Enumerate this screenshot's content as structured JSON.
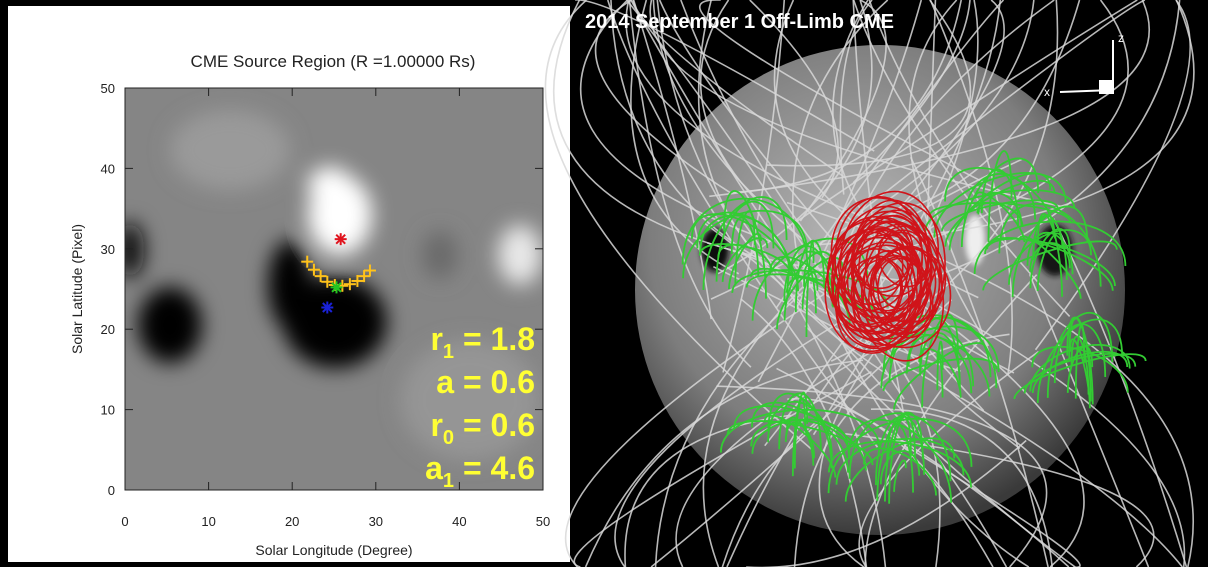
{
  "chart_data": {
    "type": "image-scatter",
    "title": "CME Source Region (R =1.00000 Rs)",
    "xlabel": "Solar Longitude (Degree)",
    "ylabel": "Solar Latitude (Pixel)",
    "xlim": [
      0,
      50
    ],
    "ylim": [
      0,
      50
    ],
    "xticks": [
      0,
      10,
      20,
      30,
      40,
      50
    ],
    "yticks": [
      0,
      10,
      20,
      30,
      40,
      50
    ],
    "series": [
      {
        "color": "#ffc21a",
        "marker": "plus",
        "x": [
          21.8,
          22.6,
          23.4,
          24.2,
          25.1,
          26.0,
          26.9,
          27.8,
          28.6,
          29.3
        ],
        "y": [
          28.4,
          27.4,
          26.6,
          25.9,
          25.5,
          25.4,
          25.6,
          26.0,
          26.6,
          27.3
        ]
      },
      {
        "color": "#e0141e",
        "marker": "asterisk",
        "x": [
          25.8
        ],
        "y": [
          31.2
        ]
      },
      {
        "color": "#22c522",
        "marker": "asterisk",
        "x": [
          25.3
        ],
        "y": [
          25.2
        ]
      },
      {
        "color": "#1a22d8",
        "marker": "asterisk",
        "x": [
          24.2
        ],
        "y": [
          22.7
        ]
      }
    ],
    "annotations": [
      {
        "base": "r",
        "sub": "1",
        "text": " = 1.8"
      },
      {
        "base": "a",
        "text": " = 0.6"
      },
      {
        "base": "r",
        "sub": "0",
        "text": " = 0.6"
      },
      {
        "base": "a",
        "sub": "1",
        "text": " = 4.6"
      }
    ]
  },
  "render_panel": {
    "title": "2014 September 1 Off-Limb CME",
    "axis_z": "z",
    "axis_x": "x"
  }
}
